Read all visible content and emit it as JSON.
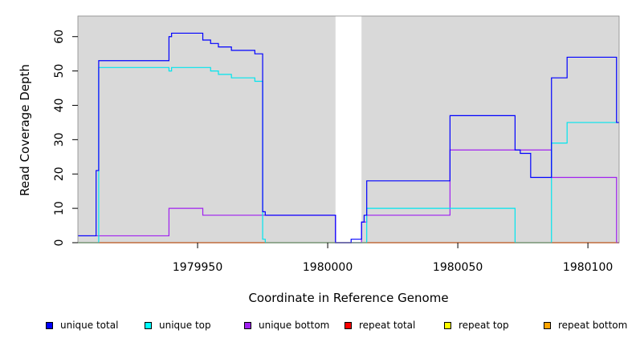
{
  "chart_data": {
    "type": "line",
    "title": "",
    "xlabel": "Coordinate in Reference Genome",
    "ylabel": "Read Coverage Depth",
    "xlim": [
      1979904,
      1980112
    ],
    "ylim": [
      0,
      66
    ],
    "xticks": [
      1979950,
      1980000,
      1980050,
      1980100
    ],
    "yticks": [
      0,
      10,
      20,
      30,
      40,
      50,
      60
    ],
    "grid": false,
    "background": "#d9d9d9",
    "gap": [
      1980003,
      1980013
    ],
    "legend_position": "bottom",
    "series": [
      {
        "name": "unique total",
        "color": "#0000ff",
        "x": [
          1979904,
          1979911,
          1979911,
          1979912,
          1979912,
          1979939,
          1979939,
          1979940,
          1979940,
          1979952,
          1979952,
          1979955,
          1979955,
          1979958,
          1979958,
          1979963,
          1979963,
          1979972,
          1979972,
          1979975,
          1979975,
          1979976,
          1979976,
          1980003,
          1980003,
          1980009,
          1980009,
          1980013,
          1980013,
          1980014,
          1980014,
          1980015,
          1980015,
          1980047,
          1980047,
          1980072,
          1980072,
          1980074,
          1980074,
          1980078,
          1980078,
          1980086,
          1980086,
          1980092,
          1980092,
          1980111,
          1980111,
          1980112
        ],
        "y": [
          2,
          2,
          21,
          21,
          53,
          53,
          60,
          60,
          61,
          61,
          59,
          59,
          58,
          58,
          57,
          57,
          56,
          56,
          55,
          55,
          9,
          9,
          8,
          8,
          0,
          0,
          1,
          1,
          6,
          6,
          8,
          8,
          18,
          18,
          37,
          37,
          27,
          27,
          26,
          26,
          19,
          19,
          48,
          48,
          54,
          54,
          35,
          35
        ]
      },
      {
        "name": "unique top",
        "color": "#00e5ee",
        "x": [
          1979904,
          1979912,
          1979912,
          1979939,
          1979939,
          1979940,
          1979940,
          1979955,
          1979955,
          1979958,
          1979958,
          1979963,
          1979963,
          1979972,
          1979972,
          1979975,
          1979975,
          1979976,
          1979976,
          1980003,
          1980003,
          1980013,
          1980013,
          1980015,
          1980015,
          1980072,
          1980072,
          1980086,
          1980086,
          1980092,
          1980092,
          1980112
        ],
        "y": [
          0,
          0,
          51,
          51,
          50,
          50,
          51,
          51,
          50,
          50,
          49,
          49,
          48,
          48,
          47,
          47,
          1,
          1,
          0,
          0,
          0,
          0,
          0,
          0,
          10,
          10,
          0,
          0,
          29,
          29,
          35,
          35
        ]
      },
      {
        "name": "unique bottom",
        "color": "#a020f0",
        "x": [
          1979904,
          1979939,
          1979939,
          1979952,
          1979952,
          1979975,
          1979975,
          1980003,
          1980003,
          1980013,
          1980013,
          1980015,
          1980015,
          1980047,
          1980047,
          1980072,
          1980072,
          1980086,
          1980086,
          1980111,
          1980111,
          1980112
        ],
        "y": [
          2,
          2,
          10,
          10,
          8,
          8,
          8,
          8,
          0,
          0,
          6,
          6,
          8,
          8,
          27,
          27,
          27,
          27,
          19,
          19,
          0,
          0
        ]
      },
      {
        "name": "repeat total",
        "color": "#ff0000",
        "x": [
          1979904,
          1980112
        ],
        "y": [
          0,
          0
        ]
      },
      {
        "name": "repeat top",
        "color": "#ffff00",
        "x": [
          1979904,
          1980112
        ],
        "y": [
          0,
          0
        ]
      },
      {
        "name": "repeat bottom",
        "color": "#ffa500",
        "x": [
          1979904,
          1980112
        ],
        "y": [
          0,
          0
        ]
      }
    ]
  },
  "legend": [
    {
      "label": "unique total",
      "color": "#0000ff"
    },
    {
      "label": "unique top",
      "color": "#00ffff"
    },
    {
      "label": "unique bottom",
      "color": "#a020f0"
    },
    {
      "label": "repeat total",
      "color": "#ff0000"
    },
    {
      "label": "repeat top",
      "color": "#ffff00"
    },
    {
      "label": "repeat bottom",
      "color": "#ffa500"
    }
  ]
}
